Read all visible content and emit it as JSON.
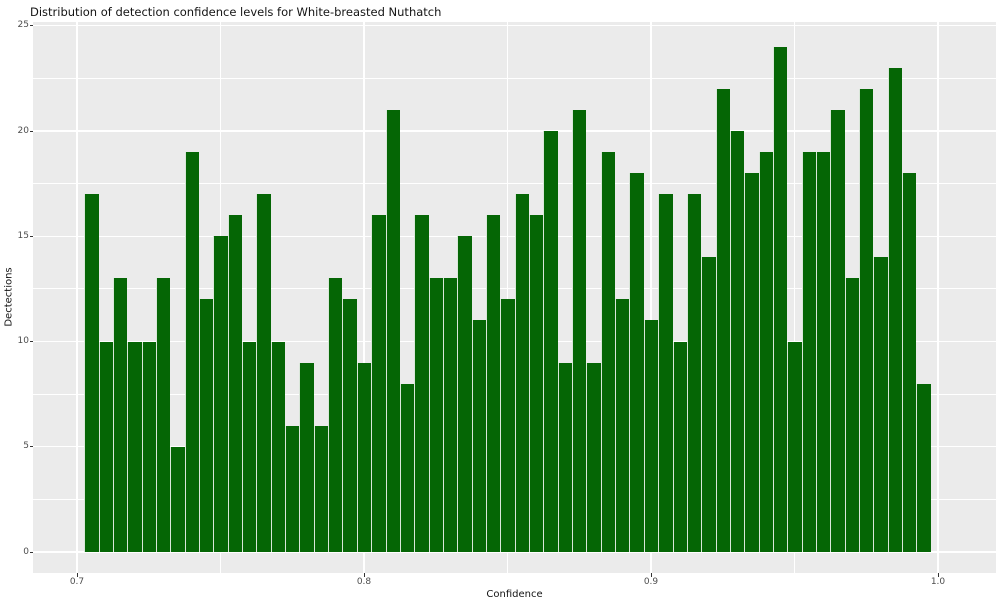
{
  "chart_data": {
    "type": "bar",
    "subtype": "histogram",
    "title": "Distribution of detection confidence levels for White-breasted Nuthatch",
    "xlabel": "Confidence",
    "ylabel": "Dectections",
    "x_tick_labels": [
      "0.7",
      "0.8",
      "0.9",
      "1.0"
    ],
    "x_tick_values": [
      0.7,
      0.8,
      0.9,
      1.0
    ],
    "x_minor_gridlines": [
      0.75,
      0.85,
      0.95
    ],
    "y_tick_labels": [
      "0",
      "5",
      "10",
      "15",
      "20",
      "25"
    ],
    "y_tick_values": [
      0,
      5,
      10,
      15,
      20,
      25
    ],
    "y_minor_gridlines": [
      2.5,
      7.5,
      12.5,
      17.5,
      22.5
    ],
    "xlim": [
      0.6847,
      1.0202
    ],
    "ylim": [
      -1.0,
      25.2
    ],
    "grid": "major-and-minor-white-on-grey",
    "legend": "none",
    "bin_width": 0.005,
    "bin_centers": [
      0.705,
      0.71,
      0.715,
      0.72,
      0.725,
      0.73,
      0.735,
      0.74,
      0.745,
      0.75,
      0.755,
      0.76,
      0.765,
      0.77,
      0.775,
      0.78,
      0.785,
      0.79,
      0.795,
      0.8,
      0.805,
      0.81,
      0.815,
      0.82,
      0.825,
      0.83,
      0.835,
      0.84,
      0.845,
      0.85,
      0.855,
      0.86,
      0.865,
      0.87,
      0.875,
      0.88,
      0.885,
      0.89,
      0.895,
      0.9,
      0.905,
      0.91,
      0.915,
      0.92,
      0.925,
      0.93,
      0.935,
      0.94,
      0.945,
      0.95,
      0.955,
      0.96,
      0.965,
      0.97,
      0.975,
      0.98,
      0.985,
      0.99,
      0.995
    ],
    "counts": [
      17,
      10,
      13,
      10,
      10,
      13,
      5,
      19,
      12,
      15,
      16,
      10,
      17,
      10,
      6,
      9,
      6,
      13,
      12,
      9,
      16,
      21,
      8,
      16,
      13,
      13,
      15,
      11,
      16,
      12,
      17,
      16,
      20,
      9,
      21,
      9,
      19,
      12,
      18,
      11,
      17,
      10,
      17,
      14,
      22,
      20,
      18,
      19,
      24,
      10,
      19,
      19,
      21,
      13,
      22,
      14,
      23,
      18,
      8
    ],
    "colors": {
      "bar_fill": "#056605",
      "bar_seam": "#d9e7d9",
      "panel_background": "#ebebeb",
      "gridline": "#ffffff",
      "tick_mark": "#333333",
      "tick_text": "#4d4d4d",
      "title_text": "#141414",
      "figure_background": "#ffffff"
    }
  }
}
